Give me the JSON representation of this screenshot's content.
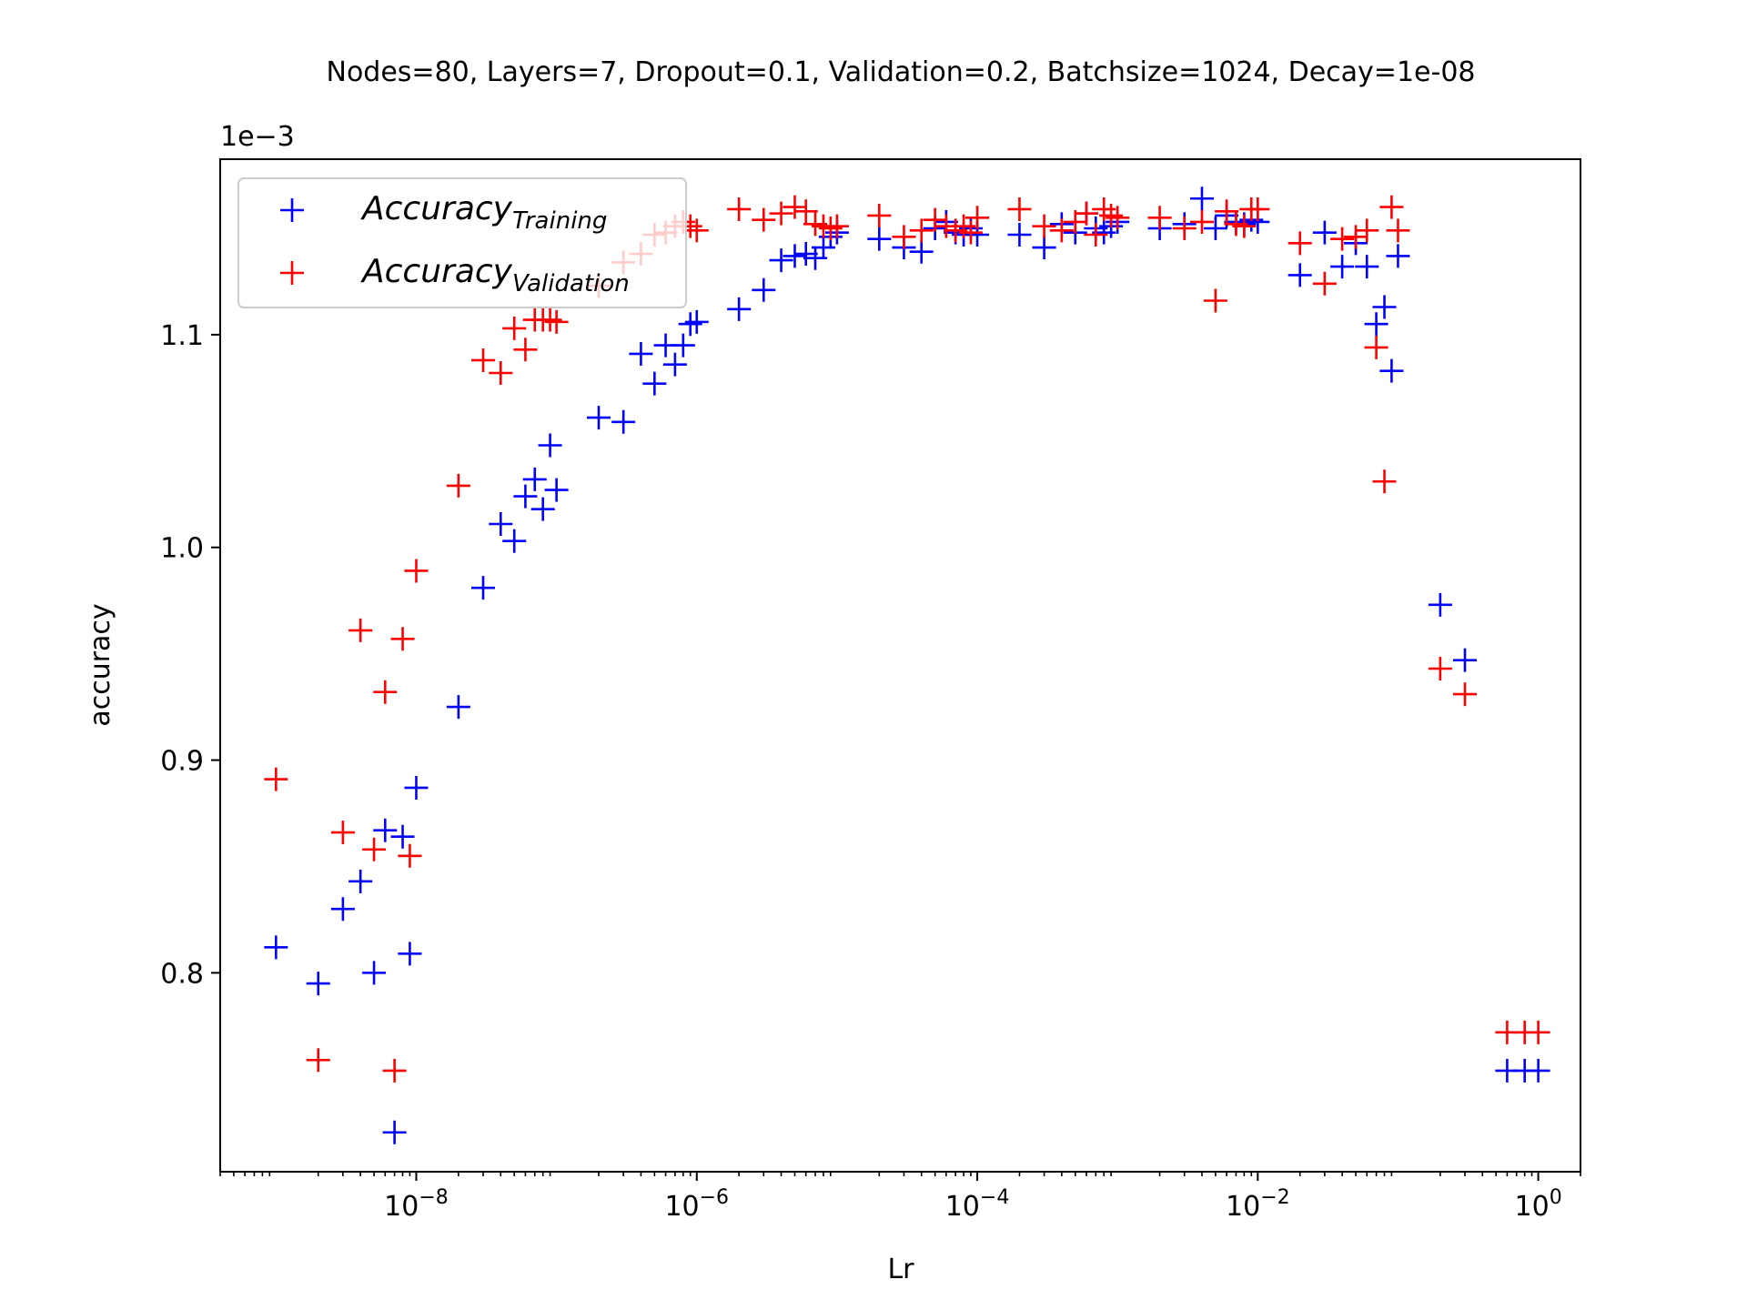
{
  "chart_data": {
    "type": "scatter",
    "title": "Nodes=80, Layers=7, Dropout=0.1, Validation=0.2, Batchsize=1024, Decay=1e-08",
    "xlabel": "Lr",
    "ylabel": "accuracy",
    "y_offset_label": "1e−3",
    "x_scale": "log",
    "xlim": [
      4e-10,
      2
    ],
    "ylim": [
      0.7065,
      1.1825
    ],
    "x_ticks": [
      1e-08,
      1e-06,
      0.0001,
      0.01,
      1
    ],
    "x_tick_labels": [
      {
        "base": "10",
        "exp": "−8"
      },
      {
        "base": "10",
        "exp": "−6"
      },
      {
        "base": "10",
        "exp": "−4"
      },
      {
        "base": "10",
        "exp": "−2"
      },
      {
        "base": "10",
        "exp": "0"
      }
    ],
    "y_ticks": [
      0.8,
      0.9,
      1.0,
      1.1
    ],
    "y_tick_labels": [
      "0.8",
      "0.9",
      "1.0",
      "1.1"
    ],
    "legend_position": "top-left",
    "marker": "+",
    "grid": false,
    "series": [
      {
        "name": "Accuracy",
        "name_sub": "Training",
        "color": "#0000ff",
        "points": [
          [
            1e-09,
            0.812
          ],
          [
            2e-09,
            0.795
          ],
          [
            3e-09,
            0.83
          ],
          [
            4e-09,
            0.843
          ],
          [
            5e-09,
            0.8
          ],
          [
            6e-09,
            0.867
          ],
          [
            7e-09,
            0.725
          ],
          [
            8e-09,
            0.864
          ],
          [
            9e-09,
            0.809
          ],
          [
            1e-08,
            0.887
          ],
          [
            2e-08,
            0.925
          ],
          [
            3e-08,
            0.981
          ],
          [
            4e-08,
            1.011
          ],
          [
            5e-08,
            1.003
          ],
          [
            6e-08,
            1.024
          ],
          [
            7e-08,
            1.032
          ],
          [
            8e-08,
            1.018
          ],
          [
            9e-08,
            1.048
          ],
          [
            1e-07,
            1.027
          ],
          [
            2e-07,
            1.061
          ],
          [
            3e-07,
            1.059
          ],
          [
            4e-07,
            1.091
          ],
          [
            5e-07,
            1.077
          ],
          [
            6e-07,
            1.095
          ],
          [
            7e-07,
            1.086
          ],
          [
            8e-07,
            1.095
          ],
          [
            9e-07,
            1.105
          ],
          [
            1e-06,
            1.106
          ],
          [
            2e-06,
            1.112
          ],
          [
            3e-06,
            1.121
          ],
          [
            4e-06,
            1.135
          ],
          [
            5e-06,
            1.137
          ],
          [
            6e-06,
            1.138
          ],
          [
            7e-06,
            1.136
          ],
          [
            8e-06,
            1.141
          ],
          [
            9e-06,
            1.146
          ],
          [
            1e-05,
            1.148
          ],
          [
            2e-05,
            1.145
          ],
          [
            3e-05,
            1.141
          ],
          [
            4e-05,
            1.139
          ],
          [
            5e-05,
            1.15
          ],
          [
            6e-05,
            1.153
          ],
          [
            7e-05,
            1.148
          ],
          [
            8e-05,
            1.147
          ],
          [
            9e-05,
            1.15
          ],
          [
            0.0001,
            1.147
          ],
          [
            0.0002,
            1.147
          ],
          [
            0.0003,
            1.141
          ],
          [
            0.0004,
            1.152
          ],
          [
            0.0005,
            1.148
          ],
          [
            0.0006,
            1.157
          ],
          [
            0.0007,
            1.15
          ],
          [
            0.0008,
            1.148
          ],
          [
            0.0009,
            1.151
          ],
          [
            0.001,
            1.153
          ],
          [
            0.002,
            1.15
          ],
          [
            0.003,
            1.152
          ],
          [
            0.004,
            1.164
          ],
          [
            0.005,
            1.15
          ],
          [
            0.006,
            1.156
          ],
          [
            0.007,
            1.153
          ],
          [
            0.008,
            1.152
          ],
          [
            0.009,
            1.154
          ],
          [
            0.01,
            1.153
          ],
          [
            0.02,
            1.128
          ],
          [
            0.03,
            1.148
          ],
          [
            0.04,
            1.132
          ],
          [
            0.05,
            1.143
          ],
          [
            0.06,
            1.132
          ],
          [
            0.07,
            1.105
          ],
          [
            0.08,
            1.113
          ],
          [
            0.09,
            1.083
          ],
          [
            0.1,
            1.137
          ],
          [
            0.2,
            0.973
          ],
          [
            0.3,
            0.947
          ],
          [
            0.6,
            0.754
          ],
          [
            0.8,
            0.754
          ],
          [
            1.0,
            0.754
          ]
        ]
      },
      {
        "name": "Accuracy",
        "name_sub": "Validation",
        "color": "#ff0000",
        "points": [
          [
            1e-09,
            0.891
          ],
          [
            2e-09,
            0.759
          ],
          [
            3e-09,
            0.866
          ],
          [
            4e-09,
            0.961
          ],
          [
            5e-09,
            0.858
          ],
          [
            6e-09,
            0.932
          ],
          [
            7e-09,
            0.754
          ],
          [
            8e-09,
            0.957
          ],
          [
            9e-09,
            0.855
          ],
          [
            1e-08,
            0.989
          ],
          [
            2e-08,
            1.029
          ],
          [
            3e-08,
            1.088
          ],
          [
            4e-08,
            1.082
          ],
          [
            5e-08,
            1.103
          ],
          [
            6e-08,
            1.093
          ],
          [
            7e-08,
            1.107
          ],
          [
            8e-08,
            1.107
          ],
          [
            9e-08,
            1.107
          ],
          [
            1e-07,
            1.106
          ],
          [
            2e-07,
            1.123
          ],
          [
            3e-07,
            1.134
          ],
          [
            4e-07,
            1.138
          ],
          [
            5e-07,
            1.147
          ],
          [
            6e-07,
            1.148
          ],
          [
            7e-07,
            1.151
          ],
          [
            8e-07,
            1.153
          ],
          [
            9e-07,
            1.151
          ],
          [
            1e-06,
            1.149
          ],
          [
            2e-06,
            1.159
          ],
          [
            3e-06,
            1.154
          ],
          [
            4e-06,
            1.157
          ],
          [
            5e-06,
            1.16
          ],
          [
            6e-06,
            1.158
          ],
          [
            7e-06,
            1.152
          ],
          [
            8e-06,
            1.151
          ],
          [
            9e-06,
            1.15
          ],
          [
            1e-05,
            1.151
          ],
          [
            2e-05,
            1.156
          ],
          [
            3e-05,
            1.146
          ],
          [
            4e-05,
            1.149
          ],
          [
            5e-05,
            1.154
          ],
          [
            6e-05,
            1.151
          ],
          [
            7e-05,
            1.149
          ],
          [
            8e-05,
            1.151
          ],
          [
            9e-05,
            1.148
          ],
          [
            0.0001,
            1.155
          ],
          [
            0.0002,
            1.159
          ],
          [
            0.0003,
            1.151
          ],
          [
            0.0004,
            1.149
          ],
          [
            0.0005,
            1.153
          ],
          [
            0.0006,
            1.157
          ],
          [
            0.0007,
            1.147
          ],
          [
            0.0008,
            1.159
          ],
          [
            0.0009,
            1.156
          ],
          [
            0.001,
            1.155
          ],
          [
            0.002,
            1.155
          ],
          [
            0.003,
            1.15
          ],
          [
            0.004,
            1.153
          ],
          [
            0.005,
            1.116
          ],
          [
            0.006,
            1.158
          ],
          [
            0.007,
            1.152
          ],
          [
            0.008,
            1.151
          ],
          [
            0.009,
            1.159
          ],
          [
            0.01,
            1.159
          ],
          [
            0.02,
            1.143
          ],
          [
            0.03,
            1.124
          ],
          [
            0.04,
            1.145
          ],
          [
            0.05,
            1.146
          ],
          [
            0.06,
            1.149
          ],
          [
            0.07,
            1.094
          ],
          [
            0.08,
            1.031
          ],
          [
            0.09,
            1.16
          ],
          [
            0.1,
            1.149
          ],
          [
            0.2,
            0.943
          ],
          [
            0.3,
            0.931
          ],
          [
            0.6,
            0.772
          ],
          [
            0.8,
            0.772
          ],
          [
            1.0,
            0.772
          ]
        ]
      }
    ]
  }
}
